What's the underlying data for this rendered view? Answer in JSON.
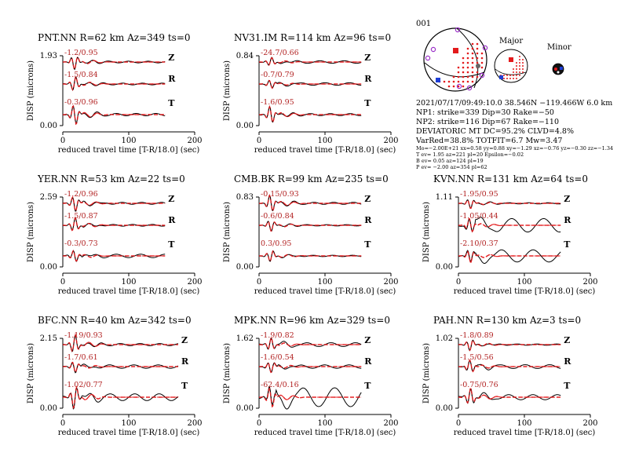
{
  "colors": {
    "observed": "#000000",
    "synthetic": "#e31a1c",
    "annotation": "#b22222"
  },
  "chart_data": [
    {
      "type": "line",
      "station": "PNT.NN",
      "title": "PNT.NN R=62 km Az=349 ts=0",
      "xlabel": "reduced travel time [T-R/18.0] (sec)",
      "ylabel": "DISP (microns)",
      "xticks": [
        0,
        100,
        200
      ],
      "xlim": [
        0,
        200
      ],
      "yticks": [
        "0.00",
        "1.93"
      ],
      "tmax": 155,
      "series": [
        {
          "name": "Z",
          "label": "-1.2/0.95",
          "fit": "good",
          "amp": 1.0
        },
        {
          "name": "R",
          "label": "-1.5/0.84",
          "fit": "good",
          "amp": 1.0
        },
        {
          "name": "T",
          "label": "-0.3/0.96",
          "fit": "good",
          "amp": 1.4
        }
      ]
    },
    {
      "type": "line",
      "station": "NV31.IM",
      "title": "NV31.IM R=114 km Az=96 ts=0",
      "xlabel": "reduced travel time [T-R/18.0] (sec)",
      "ylabel": "DISP (microns)",
      "xticks": [
        0,
        100,
        200
      ],
      "xlim": [
        0,
        200
      ],
      "yticks": [
        "0.00",
        "0.84"
      ],
      "tmax": 155,
      "series": [
        {
          "name": "Z",
          "label": "-24.7/0.66",
          "fit": "mid",
          "amp": 0.6
        },
        {
          "name": "R",
          "label": "-0.7/0.79",
          "fit": "mid",
          "amp": 0.6
        },
        {
          "name": "T",
          "label": "-1.6/0.95",
          "fit": "good",
          "amp": 1.2
        }
      ]
    },
    {
      "type": "line",
      "station": "YER.NN",
      "title": "YER.NN R=53 km Az=22 ts=0",
      "xlabel": "reduced travel time [T-R/18.0] (sec)",
      "ylabel": "DISP (microns)",
      "xticks": [
        0,
        100,
        200
      ],
      "xlim": [
        0,
        200
      ],
      "yticks": [
        "0.00",
        "2.59"
      ],
      "tmax": 155,
      "series": [
        {
          "name": "Z",
          "label": "-1.2/0.96",
          "fit": "good",
          "amp": 1.1
        },
        {
          "name": "R",
          "label": "-1.5/0.87",
          "fit": "good",
          "amp": 1.0
        },
        {
          "name": "T",
          "label": "-0.3/0.73",
          "fit": "mid",
          "amp": 0.8
        }
      ]
    },
    {
      "type": "line",
      "station": "CMB.BK",
      "title": "CMB.BK R=99 km Az=235 ts=0",
      "xlabel": "reduced travel time [T-R/18.0] (sec)",
      "ylabel": "DISP (microns)",
      "xticks": [
        0,
        100,
        200
      ],
      "xlim": [
        0,
        200
      ],
      "yticks": [
        "0.00",
        "0.83"
      ],
      "tmax": 155,
      "series": [
        {
          "name": "Z",
          "label": "-0.15/0.93",
          "fit": "good",
          "amp": 1.2
        },
        {
          "name": "R",
          "label": "-0.6/0.84",
          "fit": "good",
          "amp": 0.8
        },
        {
          "name": "T",
          "label": "0.3/0.95",
          "fit": "good",
          "amp": 0.8
        }
      ]
    },
    {
      "type": "line",
      "station": "KVN.NN",
      "title": "KVN.NN R=131 km Az=64 ts=0",
      "xlabel": "reduced travel time [T-R/18.0] (sec)",
      "ylabel": "DISP (microns)",
      "xticks": [
        0,
        100,
        200
      ],
      "xlim": [
        0,
        200
      ],
      "yticks": [
        "0.00",
        "1.11"
      ],
      "tmax": 155,
      "series": [
        {
          "name": "Z",
          "label": "-1.95/0.95",
          "fit": "good",
          "amp": 0.7
        },
        {
          "name": "R",
          "label": "-1.05/0.44",
          "fit": "poor",
          "amp": 1.0
        },
        {
          "name": "T",
          "label": "-2.10/0.37",
          "fit": "poor",
          "amp": 0.9
        }
      ]
    },
    {
      "type": "line",
      "station": "BFC.NN",
      "title": "BFC.NN R=40 km Az=342 ts=0",
      "xlabel": "reduced travel time [T-R/18.0] (sec)",
      "ylabel": "DISP (microns)",
      "xticks": [
        0,
        100,
        200
      ],
      "xlim": [
        0,
        200
      ],
      "yticks": [
        "0.00",
        "2.15"
      ],
      "tmax": 175,
      "series": [
        {
          "name": "Z",
          "label": "-1.19/0.93",
          "fit": "good",
          "amp": 1.3
        },
        {
          "name": "R",
          "label": "-1.7/0.61",
          "fit": "mid",
          "amp": 0.8
        },
        {
          "name": "T",
          "label": "-1.02/0.77",
          "fit": "mid",
          "amp": 1.6
        }
      ]
    },
    {
      "type": "line",
      "station": "MPK.NN",
      "title": "MPK.NN R=96 km Az=329 ts=0",
      "xlabel": "reduced travel time [T-R/18.0] (sec)",
      "ylabel": "DISP (microns)",
      "xticks": [
        0,
        100,
        200
      ],
      "xlim": [
        0,
        200
      ],
      "yticks": [
        "0.00",
        "1.62"
      ],
      "tmax": 155,
      "series": [
        {
          "name": "Z",
          "label": "-1.9/0.82",
          "fit": "mid",
          "amp": 0.9
        },
        {
          "name": "R",
          "label": "-1.6/0.54",
          "fit": "mid",
          "amp": 0.8
        },
        {
          "name": "T",
          "label": "-62.4/0.16",
          "fit": "poor",
          "amp": 1.4
        }
      ]
    },
    {
      "type": "line",
      "station": "PAH.NN",
      "title": "PAH.NN R=130 km Az=3 ts=0",
      "xlabel": "reduced travel time [T-R/18.0] (sec)",
      "ylabel": "DISP (microns)",
      "xticks": [
        0,
        100,
        200
      ],
      "xlim": [
        0,
        200
      ],
      "yticks": [
        "0.00",
        "1.02"
      ],
      "tmax": 155,
      "series": [
        {
          "name": "Z",
          "label": "-1.8/0.89",
          "fit": "good",
          "amp": 0.8
        },
        {
          "name": "R",
          "label": "-1.5/0.56",
          "fit": "mid",
          "amp": 0.9
        },
        {
          "name": "T",
          "label": "-0.75/0.76",
          "fit": "mid",
          "amp": 1.2
        }
      ]
    }
  ],
  "summary": {
    "event_number": "001",
    "major_label": "Major",
    "minor_label": "Minor",
    "lines": [
      "2021/07/17/09:49:10.0 38.546N −119.466W 6.0 km",
      "NP1: strike=339 Dip=30 Rake=−50",
      "NP2: strike=116 Dip=67 Rake=−110",
      "DEVIATORIC MT DC=95.2% CLVD=4.8%",
      "VarRed=38.8% TOTFIT=6.7 Mw=3.47"
    ],
    "small_lines": [
      "Mo=−2.00E+21 xx=0.58 yy=0.88 xy=−1.29 xz=−0.76 yz=−0.30 zz=−1.34",
      "T ev=  1.95 az=221 pl=20 Epsilon=−0.02",
      "B ev=  0.05 az=124 pl=19",
      "P ev= −2.00 az=354 pl=62"
    ]
  }
}
